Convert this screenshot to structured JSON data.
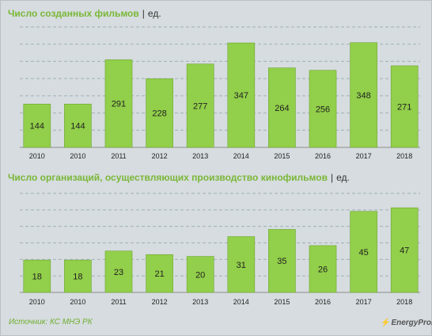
{
  "colors": {
    "bar": "#92cf4a",
    "bar_edge": "#6ea533",
    "grid": "#9fb1ba",
    "axis": "#8c8c8c",
    "text": "#1f1f1f"
  },
  "chart_data": [
    {
      "type": "bar",
      "title": "Число созданных фильмов",
      "unit": "ед.",
      "categories": [
        "2010",
        "2010",
        "2011",
        "2012",
        "2013",
        "2014",
        "2015",
        "2016",
        "2017",
        "2018"
      ],
      "values": [
        144,
        144,
        291,
        228,
        277,
        347,
        264,
        256,
        348,
        271
      ],
      "ylim": [
        0,
        400
      ],
      "grid": true,
      "data_labels": true
    },
    {
      "type": "bar",
      "title": "Число организаций, осуществляющих производство кинофильмов",
      "unit": "ед.",
      "categories": [
        "2010",
        "2010",
        "2011",
        "2012",
        "2013",
        "2014",
        "2015",
        "2016",
        "2017",
        "2018"
      ],
      "values": [
        18,
        18,
        23,
        21,
        20,
        31,
        35,
        26,
        45,
        47
      ],
      "ylim": [
        0,
        55
      ],
      "grid": true,
      "data_labels": true
    }
  ],
  "footer": {
    "source": "Источник: КС МНЭ РК",
    "logo_text": "EnergyProm"
  }
}
